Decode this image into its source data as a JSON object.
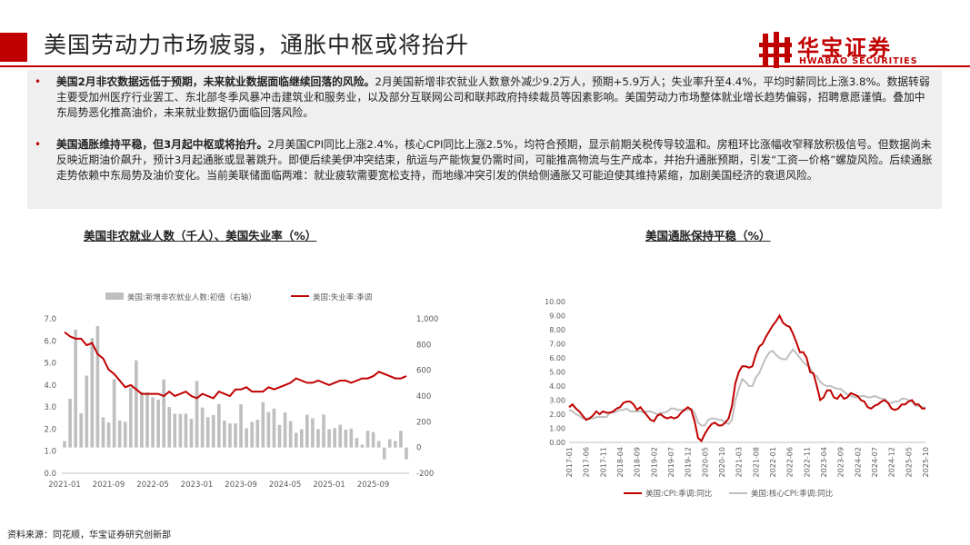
{
  "header": {
    "title": "美国劳动力市场疲弱，通胀中枢或将抬升",
    "logo_cn": "华宝证券",
    "logo_en": "HWABAO SECURITIES",
    "accent_color": "#c00000"
  },
  "summary": [
    {
      "bold": "美国2月非农数据远低于预期，未来就业数据面临继续回落的风险。",
      "text": "2月美国新增非农就业人数意外减少9.2万人，预期+5.9万人；失业率升至4.4%，平均时薪同比上涨3.8%。数据转弱主要受加州医疗行业罢工、东北部冬季风暴冲击建筑业和服务业，以及部分互联网公司和联邦政府持续裁员等因素影响。美国劳动力市场整体就业增长趋势偏弱，招聘意愿谨慎。叠加中东局势恶化推高油价，未来就业数据仍面临回落风险。"
    },
    {
      "bold": "美国通胀维持平稳，但3月起中枢或将抬升。",
      "text": "2月美国CPI同比上涨2.4%，核心CPI同比上涨2.5%，均符合预期，显示前期关税传导较温和。房租环比涨幅收窄释放积极信号。但数据尚未反映近期油价飙升，预计3月起通胀或显著跳升。即便后续美伊冲突结束，航运与产能恢复仍需时间，可能推高物流与生产成本，并抬升通胀预期，引发“工资—价格”螺旋风险。后续通胀走势依赖中东局势及油价变化。当前美联储面临两难：就业疲软需要宽松支持，而地缘冲突引发的供给侧通胀又可能迫使其维持紧缩，加剧美国经济的衰退风险。"
    }
  ],
  "source": "资料来源：同花顺，华宝证券研究创新部",
  "chart_data": [
    {
      "type": "bar+line",
      "title": "美国非农就业人数（千人）、美国失业率（%）",
      "x_ticks": [
        "2021-01",
        "2021-09",
        "2022-05",
        "2023-01",
        "2023-09",
        "2024-05",
        "2025-01",
        "2025-09"
      ],
      "y_left": {
        "ticks": [
          "0.0",
          "1.0",
          "2.0",
          "3.0",
          "4.0",
          "5.0",
          "6.0",
          "7.0"
        ],
        "range": [
          0,
          7
        ]
      },
      "y_right": {
        "ticks": [
          "-200",
          "0",
          "200",
          "400",
          "600",
          "800",
          "1,000"
        ],
        "range": [
          -200,
          1000
        ]
      },
      "legend_placement": "top",
      "series": [
        {
          "name": "美国:新增非农就业人数:初值（右轴）",
          "kind": "bar",
          "axis": "right",
          "color": "#bfbfbf",
          "values": [
            49,
            379,
            916,
            266,
            559,
            850,
            943,
            235,
            194,
            531,
            210,
            199,
            467,
            678,
            431,
            428,
            390,
            372,
            528,
            315,
            263,
            261,
            263,
            223,
            517,
            311,
            236,
            253,
            339,
            209,
            187,
            187,
            336,
            150,
            199,
            216,
            353,
            275,
            303,
            175,
            272,
            206,
            114,
            142,
            254,
            227,
            143,
            256,
            143,
            151,
            177,
            139,
            147,
            73,
            22,
            130,
            119,
            50,
            -92,
            64,
            50,
            130,
            -92
          ]
        },
        {
          "name": "美国:失业率:季调",
          "kind": "line",
          "axis": "left",
          "color": "#c00000",
          "values": [
            6.4,
            6.2,
            6.1,
            6.1,
            5.8,
            5.9,
            5.4,
            5.2,
            4.7,
            4.5,
            4.2,
            3.9,
            4.0,
            3.8,
            3.6,
            3.6,
            3.6,
            3.6,
            3.5,
            3.7,
            3.5,
            3.6,
            3.7,
            3.5,
            3.4,
            3.6,
            3.5,
            3.4,
            3.7,
            3.6,
            3.5,
            3.8,
            3.8,
            3.9,
            3.7,
            3.7,
            3.7,
            3.9,
            3.8,
            3.9,
            4.0,
            4.1,
            4.3,
            4.2,
            4.1,
            4.1,
            4.2,
            4.1,
            4.0,
            4.1,
            4.2,
            4.2,
            4.1,
            4.2,
            4.3,
            4.3,
            4.4,
            4.6,
            4.5,
            4.4,
            4.3,
            4.3,
            4.4
          ]
        }
      ]
    },
    {
      "type": "line",
      "title": "美国通胀保持平稳（%）",
      "x_ticks": [
        "2017-01",
        "2017-06",
        "2017-11",
        "2018-04",
        "2018-09",
        "2019-02",
        "2019-07",
        "2019-12",
        "2020-05",
        "2020-10",
        "2021-03",
        "2021-08",
        "2022-01",
        "2022-06",
        "2022-11",
        "2023-04",
        "2023-09",
        "2024-02",
        "2024-07",
        "2024-12",
        "2025-05",
        "2025-10"
      ],
      "y_ticks": [
        "0.00",
        "1.00",
        "2.00",
        "3.00",
        "4.00",
        "5.00",
        "6.00",
        "7.00",
        "8.00",
        "9.00",
        "10.00"
      ],
      "y_range": [
        0,
        10
      ],
      "legend_placement": "bottom",
      "series": [
        {
          "name": "美国:CPI:季调:同比",
          "color": "#c00000",
          "values": [
            2.5,
            2.7,
            2.4,
            2.2,
            1.9,
            1.6,
            1.7,
            1.9,
            2.2,
            2.0,
            2.2,
            2.1,
            2.1,
            2.2,
            2.4,
            2.5,
            2.8,
            2.9,
            2.9,
            2.7,
            2.3,
            2.5,
            2.2,
            1.9,
            1.6,
            1.5,
            1.9,
            2.0,
            1.8,
            1.7,
            1.8,
            1.7,
            1.8,
            2.1,
            2.3,
            2.5,
            2.3,
            1.5,
            0.3,
            0.1,
            0.6,
            1.0,
            1.3,
            1.4,
            1.2,
            1.2,
            1.4,
            1.7,
            2.6,
            4.2,
            5.0,
            5.4,
            5.4,
            5.3,
            5.4,
            6.2,
            6.8,
            7.0,
            7.5,
            7.9,
            8.3,
            8.6,
            9.0,
            8.5,
            8.3,
            8.2,
            7.7,
            7.1,
            6.4,
            6.4,
            6.0,
            5.0,
            4.9,
            4.0,
            3.0,
            3.2,
            3.7,
            3.7,
            3.2,
            3.1,
            3.4,
            3.1,
            3.2,
            3.5,
            3.4,
            3.3,
            3.0,
            2.9,
            2.5,
            2.4,
            2.6,
            2.7,
            2.9,
            3.0,
            2.8,
            2.4,
            2.3,
            2.4,
            2.7,
            2.7,
            2.9,
            3.0,
            2.7,
            2.7,
            2.4,
            2.4
          ]
        },
        {
          "name": "美国:核心CPI:季调:同比",
          "color": "#bfbfbf",
          "values": [
            2.3,
            2.2,
            2.0,
            1.9,
            1.7,
            1.7,
            1.7,
            1.7,
            1.8,
            1.8,
            1.8,
            1.8,
            2.1,
            2.1,
            2.2,
            2.3,
            2.3,
            2.4,
            2.2,
            2.2,
            2.2,
            2.2,
            2.1,
            2.2,
            2.2,
            2.1,
            2.0,
            2.1,
            2.1,
            2.2,
            2.4,
            2.4,
            2.3,
            2.3,
            2.3,
            2.3,
            2.4,
            2.1,
            1.4,
            1.2,
            1.2,
            1.6,
            1.7,
            1.7,
            1.6,
            1.6,
            1.4,
            1.3,
            1.6,
            3.0,
            3.8,
            4.5,
            4.3,
            4.0,
            4.0,
            4.6,
            4.9,
            5.5,
            6.0,
            6.4,
            6.5,
            6.2,
            6.0,
            5.9,
            5.9,
            6.3,
            6.6,
            6.3,
            6.0,
            5.7,
            5.5,
            5.3,
            4.8,
            4.7,
            4.3,
            4.1,
            4.0,
            4.0,
            3.9,
            3.8,
            3.8,
            3.6,
            3.4,
            3.3,
            3.2,
            3.2,
            3.3,
            3.3,
            3.2,
            3.2,
            3.3,
            3.2,
            3.1,
            3.1,
            2.8,
            2.8,
            2.9,
            2.9,
            3.1,
            3.1,
            3.0,
            2.9,
            2.6,
            2.6,
            2.5,
            2.5
          ]
        }
      ]
    }
  ]
}
